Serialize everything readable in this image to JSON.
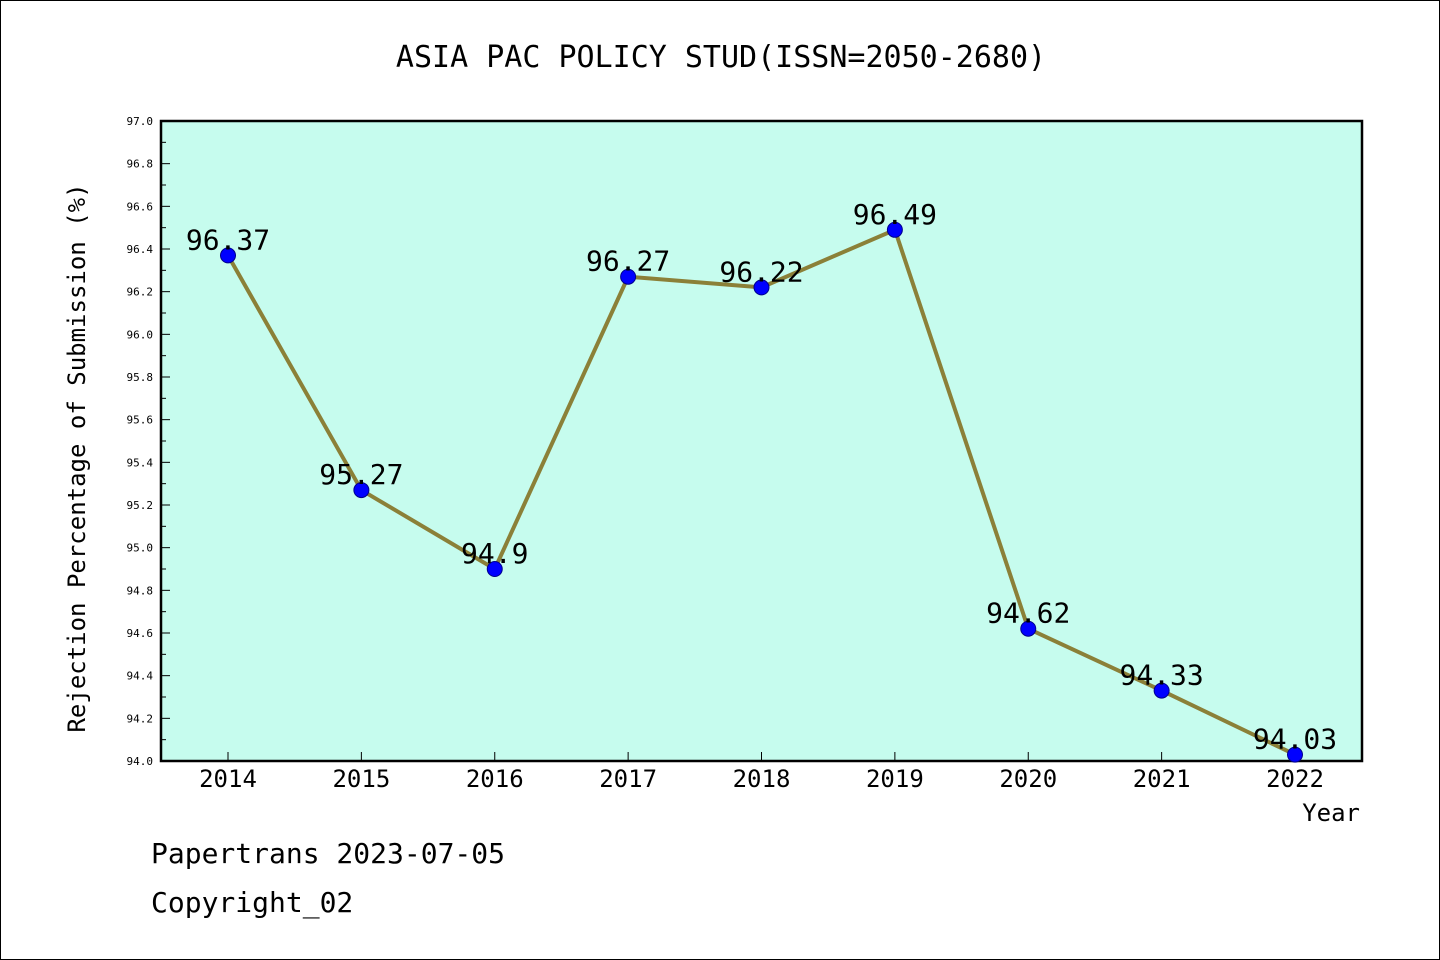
{
  "chart_data": {
    "type": "line",
    "title": "ASIA PAC POLICY STUD(ISSN=2050-2680)",
    "xlabel": "Year",
    "ylabel": "Rejection Percentage of Submission (%)",
    "categories": [
      "2014",
      "2015",
      "2016",
      "2017",
      "2018",
      "2019",
      "2020",
      "2021",
      "2022"
    ],
    "series": [
      {
        "values": [
          96.37,
          95.27,
          94.9,
          96.27,
          96.22,
          96.49,
          94.62,
          94.33,
          94.03
        ],
        "data_labels": [
          "96.37",
          "95.27",
          "94.9",
          "96.27",
          "96.22",
          "96.49",
          "94.62",
          "94.33",
          "94.03"
        ]
      }
    ],
    "ylim": [
      94.0,
      97.0
    ],
    "yticks": [
      "94.0",
      "94.2",
      "94.4",
      "94.6",
      "94.8",
      "95.0",
      "95.2",
      "95.4",
      "95.6",
      "95.8",
      "96.0",
      "96.2",
      "96.4",
      "96.6",
      "96.8",
      "97.0"
    ],
    "grid": false,
    "colors": {
      "plot_background": "#c6fcee",
      "line": "#8b8038",
      "marker": "#0000ff"
    }
  },
  "footer": {
    "line1": "Papertrans 2023-07-05",
    "line2": "Copyright_02"
  }
}
